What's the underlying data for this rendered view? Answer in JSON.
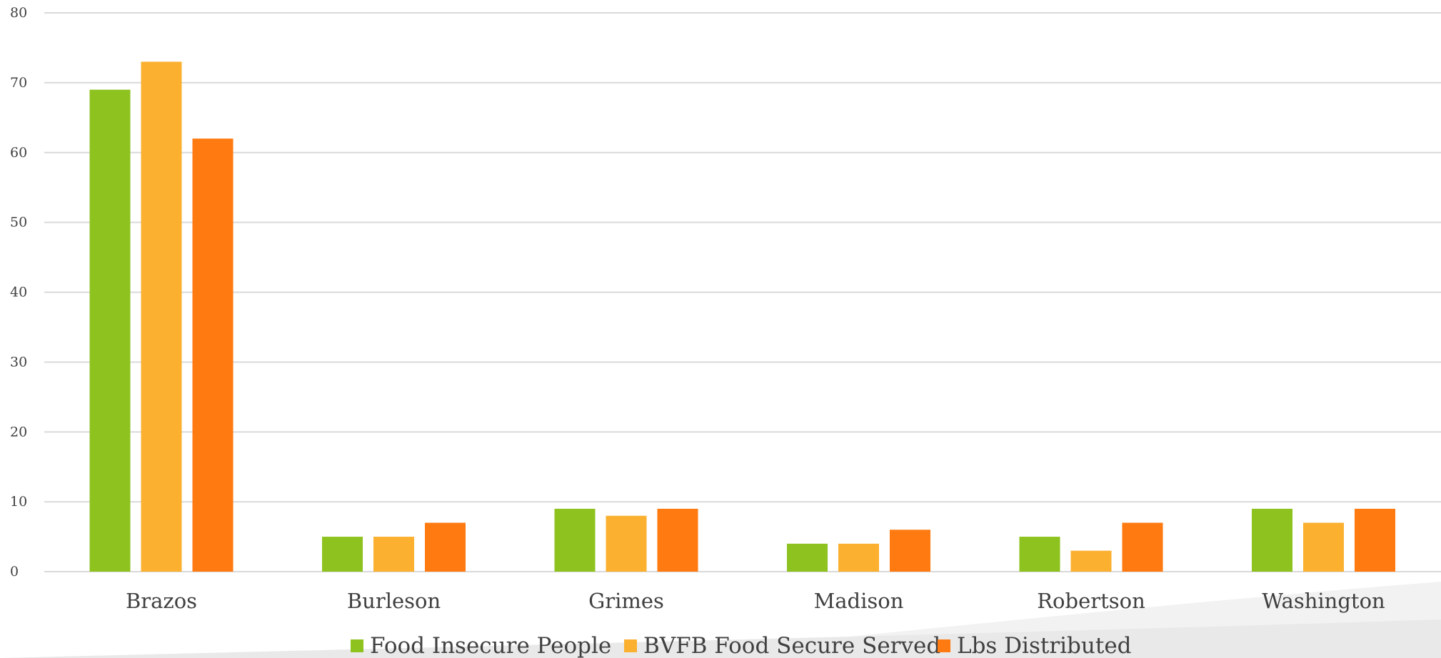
{
  "chart_data": {
    "type": "bar",
    "title": "",
    "xlabel": "",
    "ylabel": "",
    "ylim": [
      0,
      80
    ],
    "yticks": [
      0,
      10,
      20,
      30,
      40,
      50,
      60,
      70,
      80
    ],
    "ytick_labels": [
      "0",
      "10",
      "20",
      "30",
      "40",
      "50",
      "60",
      "70",
      "80"
    ],
    "grid": "horizontal",
    "legend_position": "bottom",
    "categories": [
      "Brazos",
      "Burleson",
      "Grimes",
      "Madison",
      "Robertson",
      "Washington"
    ],
    "series": [
      {
        "name": "Food Insecure People",
        "color": "#8dc21f",
        "values": [
          69,
          5,
          9,
          4,
          5,
          9
        ]
      },
      {
        "name": "BVFB Food Secure Served",
        "color": "#fbb030",
        "values": [
          73,
          5,
          8,
          4,
          3,
          7
        ]
      },
      {
        "name": "Lbs Distributed",
        "color": "#ff7a10",
        "values": [
          62,
          7,
          9,
          6,
          7,
          9
        ]
      }
    ],
    "colors": {
      "gridline": "#d9d9d9",
      "text": "#404040",
      "decor_swoosh": "#eeeeee"
    }
  }
}
